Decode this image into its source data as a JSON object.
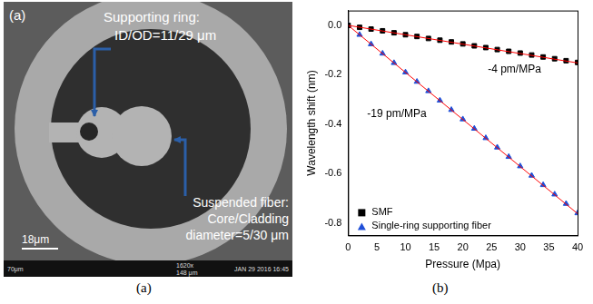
{
  "image_panel": {
    "letter": "(a)",
    "caption": "(a)",
    "ring_label": [
      "Supporting ring:",
      "ID/OD=11/29 μm"
    ],
    "fiber_label": [
      "Suspended fiber:",
      "Core/Cladding",
      "diameter=5/30 μm"
    ],
    "scale_bar": "18μm",
    "footer": [
      "70μm",
      "1620x",
      "148 μm",
      "JAN 29 2016 16:45"
    ]
  },
  "chart_data": {
    "type": "scatter",
    "caption": "(b)",
    "x_label": "Pressure (Mpa)",
    "y_label": "Wavelength shift (nm)",
    "xlim": [
      0,
      40
    ],
    "xticks": [
      0,
      5,
      10,
      15,
      20,
      25,
      30,
      35,
      40
    ],
    "ylim": [
      -0.85,
      0.06
    ],
    "yticks": [
      {
        "value": -0.8,
        "label": "-0.8"
      },
      {
        "value": -0.6,
        "label": "-0.6"
      },
      {
        "value": -0.4,
        "label": "-0.4"
      },
      {
        "value": -0.2,
        "label": "-0.2"
      },
      {
        "value": 0,
        "label": "0.0"
      }
    ],
    "grid": false,
    "legend": "bottom left",
    "annotations": [
      "-4 pm/MPa",
      "-19 pm/MPa"
    ],
    "series": [
      {
        "name": "SMF",
        "color": "#000000",
        "marker": "square",
        "type": "scatter",
        "x": [
          0,
          2,
          4,
          6,
          8,
          10,
          12,
          14,
          16,
          18,
          20,
          22,
          24,
          26,
          28,
          30,
          32,
          34,
          36,
          38,
          40
        ],
        "values": [
          0,
          -0.008,
          -0.015,
          -0.022,
          -0.03,
          -0.038,
          -0.045,
          -0.053,
          -0.06,
          -0.067,
          -0.075,
          -0.083,
          -0.09,
          -0.098,
          -0.105,
          -0.112,
          -0.12,
          -0.128,
          -0.135,
          -0.143,
          -0.15
        ]
      },
      {
        "name": "Single-ring supporting fiber",
        "color": "#1f4fd8",
        "marker": "triangle",
        "type": "scatter",
        "x": [
          0,
          2,
          4,
          6,
          8,
          10,
          12,
          14,
          16,
          18,
          20,
          22,
          24,
          26,
          28,
          30,
          32,
          34,
          36,
          38,
          40
        ],
        "values": [
          0,
          -0.038,
          -0.076,
          -0.114,
          -0.152,
          -0.19,
          -0.228,
          -0.266,
          -0.304,
          -0.342,
          -0.38,
          -0.418,
          -0.456,
          -0.494,
          -0.532,
          -0.57,
          -0.608,
          -0.646,
          -0.684,
          -0.722,
          -0.76
        ]
      },
      {
        "type": "line",
        "color": "#ff0000",
        "line_style": "solid",
        "x": [
          0,
          40
        ],
        "values": [
          0,
          -0.152
        ]
      },
      {
        "type": "line",
        "color": "#ff0000",
        "line_style": "solid",
        "x": [
          0,
          40
        ],
        "values": [
          0,
          -0.762
        ]
      }
    ]
  }
}
